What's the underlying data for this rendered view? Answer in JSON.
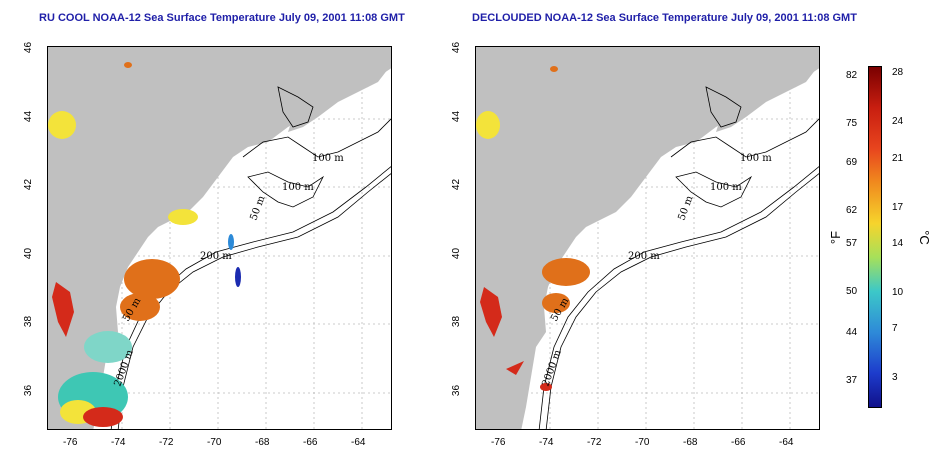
{
  "titles": {
    "left": "RU COOL NOAA-12 Sea Surface Temperature July 09, 2001 11:08 GMT",
    "right": "DECLOUDED NOAA-12 Sea Surface Temperature July 09, 2001 11:08 GMT"
  },
  "axes": {
    "lat_ticks": [
      "46",
      "44",
      "42",
      "40",
      "38",
      "36"
    ],
    "lon_ticks": [
      "-76",
      "-74",
      "-72",
      "-70",
      "-68",
      "-66",
      "-64"
    ]
  },
  "contour_labels": [
    "100 m",
    "100 m",
    "50 m",
    "200 m",
    "50 m",
    "2000 m"
  ],
  "colorbar": {
    "fahrenheit_ticks": [
      "82",
      "75",
      "69",
      "62",
      "57",
      "50",
      "44",
      "37"
    ],
    "celsius_ticks": [
      "28",
      "24",
      "21",
      "17",
      "14",
      "10",
      "7",
      "3"
    ],
    "unit_f": "°F",
    "unit_c": "°C"
  },
  "colors": {
    "land": "#c0c0c0",
    "title": "#1f1fa8",
    "warm": "#e0701a",
    "hot": "#d42a1a",
    "cool": "#2c8ad8",
    "cold": "#1b2bb0",
    "mild": "#f3e33a",
    "teal": "#3ec7b4"
  }
}
